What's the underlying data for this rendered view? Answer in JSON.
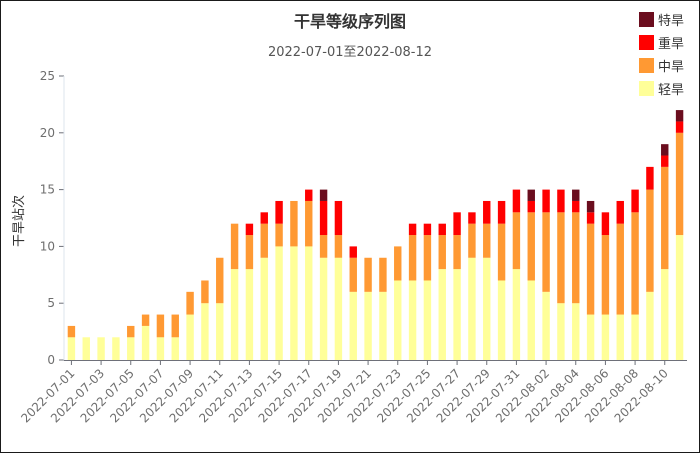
{
  "chart_data": {
    "type": "bar",
    "stacked": true,
    "title": "干旱等级序列图",
    "subtitle": "2022-07-01至2022-08-12",
    "ylabel": "干旱站次",
    "ylim": [
      0,
      25
    ],
    "yticks": [
      0,
      5,
      10,
      15,
      20,
      25
    ],
    "legend_position": "top-right",
    "categories": [
      "2022-07-01",
      "2022-07-02",
      "2022-07-03",
      "2022-07-04",
      "2022-07-05",
      "2022-07-06",
      "2022-07-07",
      "2022-07-08",
      "2022-07-09",
      "2022-07-10",
      "2022-07-11",
      "2022-07-12",
      "2022-07-13",
      "2022-07-14",
      "2022-07-15",
      "2022-07-16",
      "2022-07-17",
      "2022-07-18",
      "2022-07-19",
      "2022-07-20",
      "2022-07-21",
      "2022-07-22",
      "2022-07-23",
      "2022-07-24",
      "2022-07-25",
      "2022-07-26",
      "2022-07-27",
      "2022-07-28",
      "2022-07-29",
      "2022-07-30",
      "2022-07-31",
      "2022-08-01",
      "2022-08-02",
      "2022-08-03",
      "2022-08-04",
      "2022-08-05",
      "2022-08-06",
      "2022-08-07",
      "2022-08-08",
      "2022-08-09",
      "2022-08-10",
      "2022-08-11"
    ],
    "tick_labels": [
      "2022-07-01",
      "2022-07-03",
      "2022-07-05",
      "2022-07-07",
      "2022-07-09",
      "2022-07-11",
      "2022-07-13",
      "2022-07-15",
      "2022-07-17",
      "2022-07-19",
      "2022-07-21",
      "2022-07-23",
      "2022-07-25",
      "2022-07-27",
      "2022-07-29",
      "2022-07-31",
      "2022-08-02",
      "2022-08-04",
      "2022-08-06",
      "2022-08-08",
      "2022-08-10"
    ],
    "series": [
      {
        "name": "轻旱",
        "color": "#FFFF99",
        "values": [
          2,
          2,
          2,
          2,
          2,
          3,
          2,
          2,
          4,
          5,
          5,
          8,
          8,
          9,
          10,
          10,
          10,
          9,
          9,
          6,
          6,
          6,
          7,
          7,
          7,
          8,
          8,
          9,
          9,
          7,
          8,
          7,
          6,
          5,
          5,
          4,
          4,
          4,
          4,
          6,
          8,
          11
        ]
      },
      {
        "name": "中旱",
        "color": "#FF9933",
        "values": [
          1,
          0,
          0,
          0,
          1,
          1,
          2,
          2,
          2,
          2,
          4,
          4,
          3,
          3,
          2,
          4,
          4,
          2,
          2,
          3,
          3,
          3,
          3,
          4,
          4,
          3,
          3,
          3,
          3,
          5,
          5,
          6,
          7,
          8,
          8,
          8,
          7,
          8,
          9,
          9,
          9,
          9
        ]
      },
      {
        "name": "重旱",
        "color": "#FF0000",
        "values": [
          0,
          0,
          0,
          0,
          0,
          0,
          0,
          0,
          0,
          0,
          0,
          0,
          1,
          1,
          2,
          0,
          1,
          3,
          3,
          1,
          0,
          0,
          0,
          1,
          1,
          1,
          2,
          1,
          2,
          2,
          2,
          1,
          2,
          2,
          1,
          1,
          2,
          2,
          2,
          2,
          1,
          1
        ]
      },
      {
        "name": "特旱",
        "color": "#6B0D1E",
        "values": [
          0,
          0,
          0,
          0,
          0,
          0,
          0,
          0,
          0,
          0,
          0,
          0,
          0,
          0,
          0,
          0,
          0,
          1,
          0,
          0,
          0,
          0,
          0,
          0,
          0,
          0,
          0,
          0,
          0,
          0,
          0,
          1,
          0,
          0,
          1,
          1,
          0,
          0,
          0,
          0,
          1,
          1
        ]
      }
    ]
  },
  "colors": {
    "axis": "#6E7079",
    "ytick_text": "#6E7079"
  }
}
